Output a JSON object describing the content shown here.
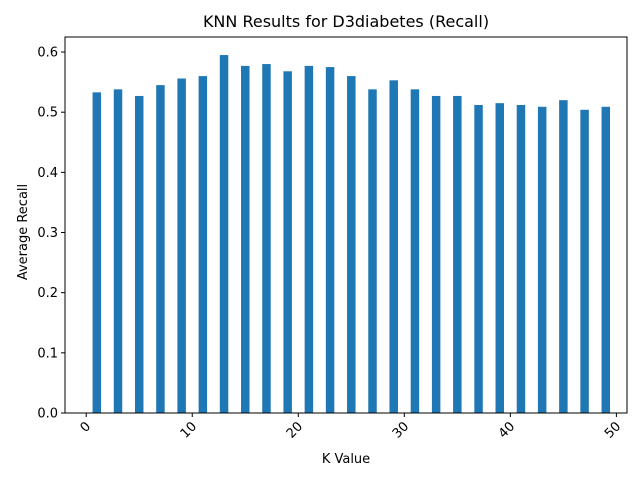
{
  "chart_data": {
    "type": "bar",
    "title": "KNN Results for D3diabetes (Recall)",
    "xlabel": "K Value",
    "ylabel": "Average Recall",
    "x": [
      1,
      3,
      5,
      7,
      9,
      11,
      13,
      15,
      17,
      19,
      21,
      23,
      25,
      27,
      29,
      31,
      33,
      35,
      37,
      39,
      41,
      43,
      45,
      47,
      49
    ],
    "values": [
      0.533,
      0.538,
      0.527,
      0.545,
      0.556,
      0.56,
      0.595,
      0.577,
      0.58,
      0.568,
      0.577,
      0.575,
      0.56,
      0.538,
      0.553,
      0.538,
      0.527,
      0.527,
      0.512,
      0.515,
      0.512,
      0.509,
      0.52,
      0.504,
      0.509
    ],
    "xlim": [
      -2,
      51
    ],
    "ylim": [
      0,
      0.625
    ],
    "xticks": [
      "0",
      "10",
      "20",
      "30",
      "40",
      "50"
    ],
    "yticks": [
      "0.0",
      "0.1",
      "0.2",
      "0.3",
      "0.4",
      "0.5",
      "0.6"
    ],
    "xtick_rotation": 45,
    "grid": false,
    "bar_color": "#1f77b4"
  }
}
